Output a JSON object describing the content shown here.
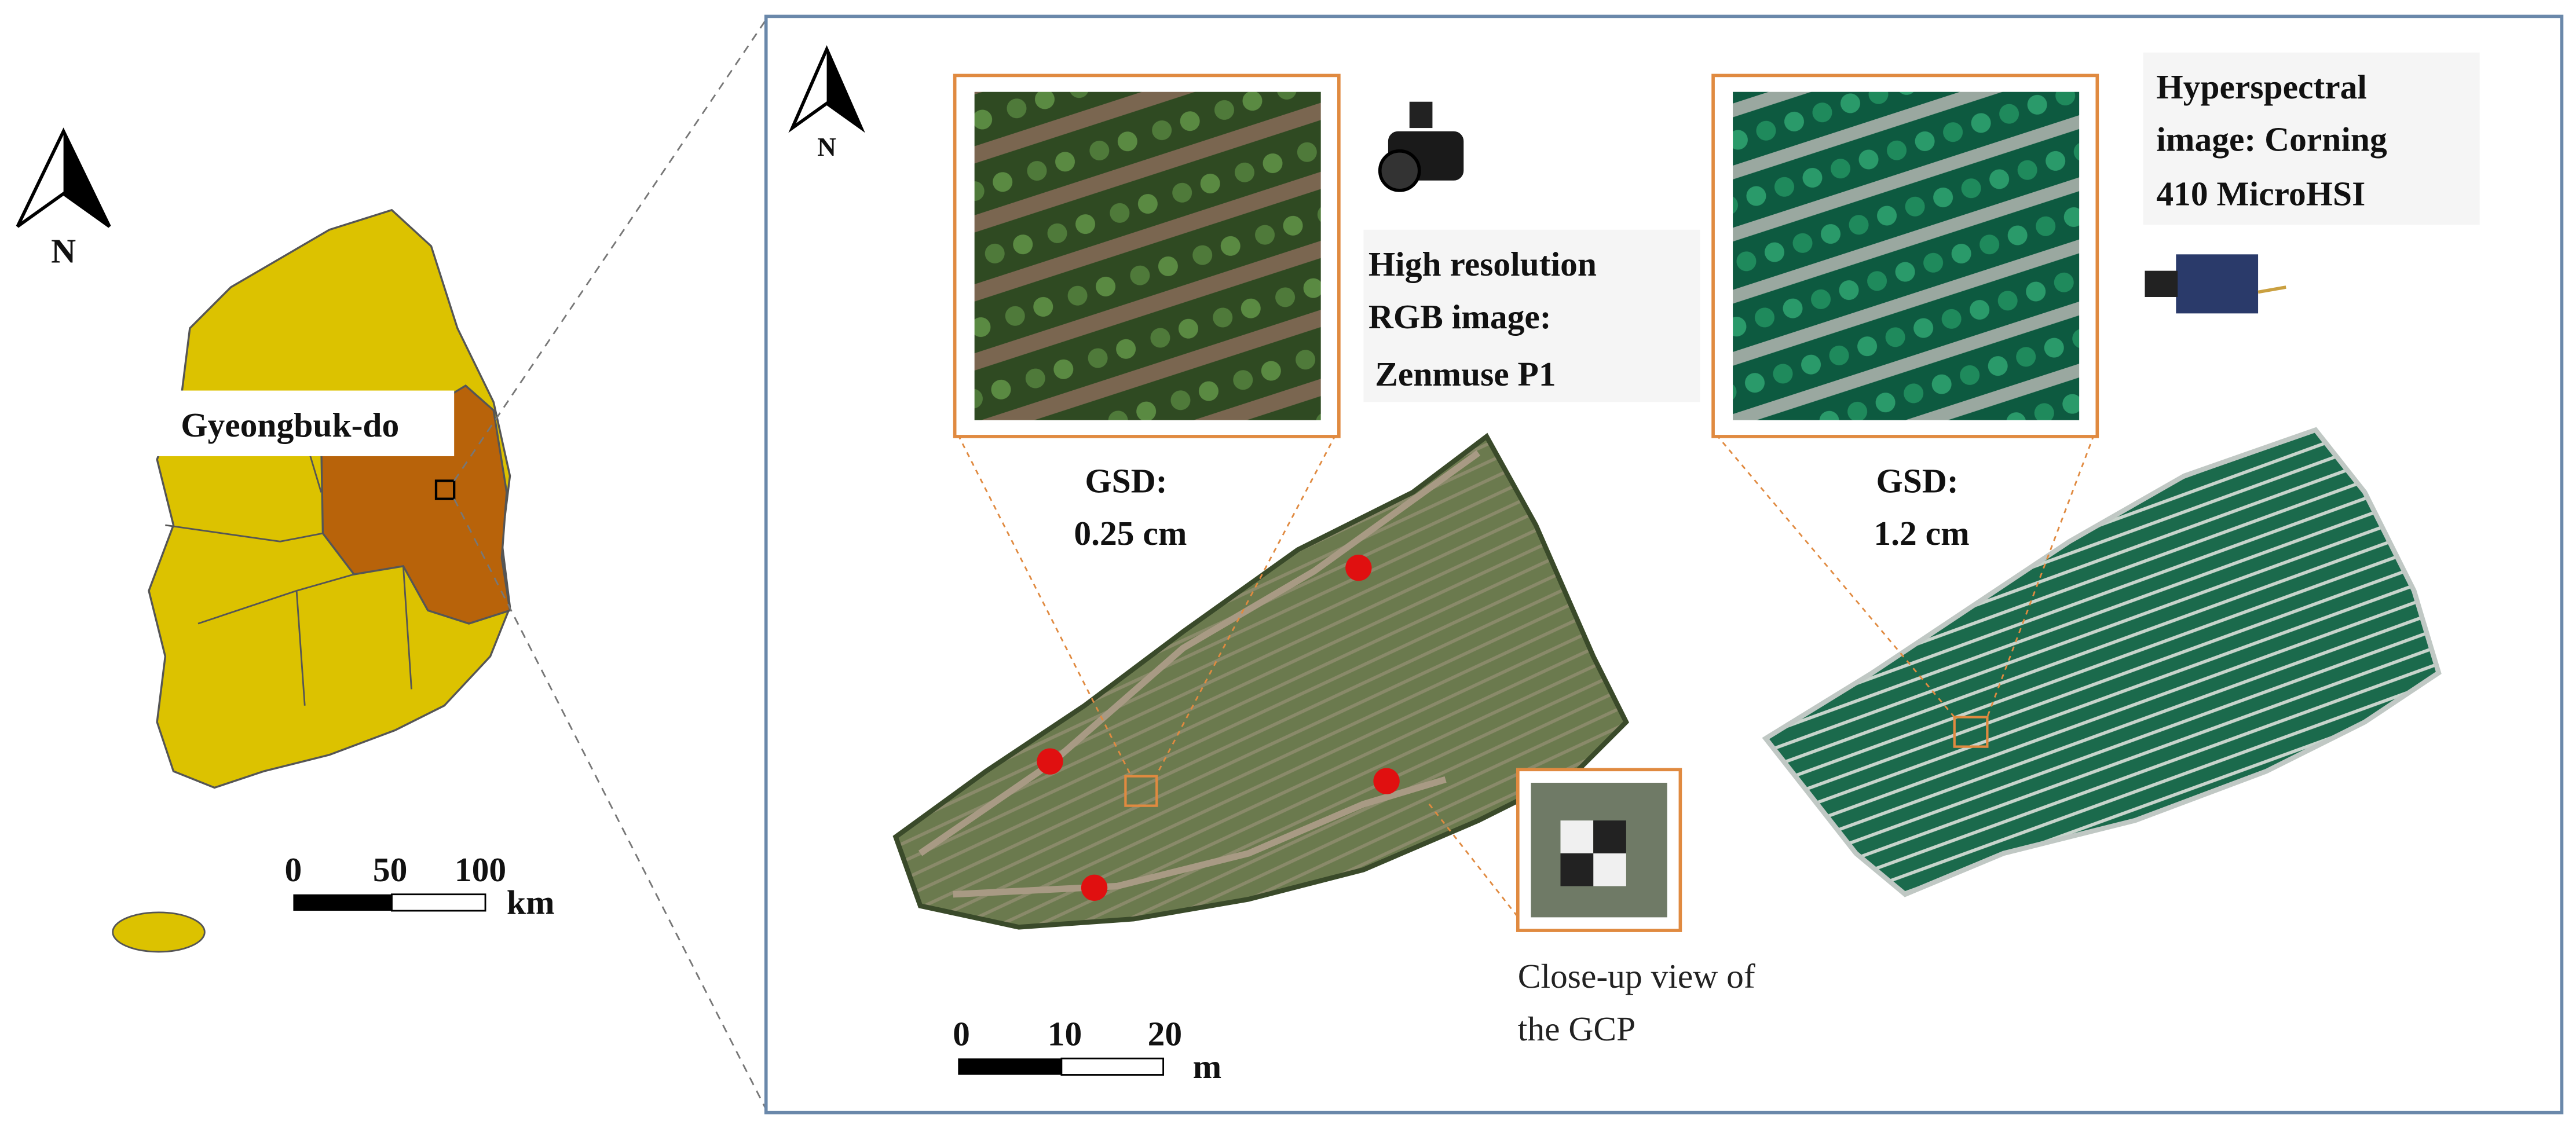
{
  "overview_map": {
    "north_label": "N",
    "region_label": "Gyeongbuk-do",
    "scale_bar": {
      "ticks": [
        0,
        50,
        100
      ],
      "unit": "km"
    }
  },
  "site_map": {
    "north_label": "N",
    "rgb": {
      "caption_lines": [
        "High resolution",
        "RGB image:",
        "Zenmuse P1"
      ],
      "gsd_lines": [
        "GSD:",
        "0.25 cm"
      ]
    },
    "hyperspectral": {
      "caption_lines": [
        "Hyperspectral",
        "image: Corning",
        "410 MicroHSI"
      ],
      "gsd_lines": [
        "GSD:",
        "1.2 cm"
      ]
    },
    "gcp_caption_lines": [
      "Close-up view of",
      "the GCP"
    ],
    "scale_bar": {
      "ticks": [
        0,
        10,
        20
      ],
      "unit": "m"
    }
  }
}
